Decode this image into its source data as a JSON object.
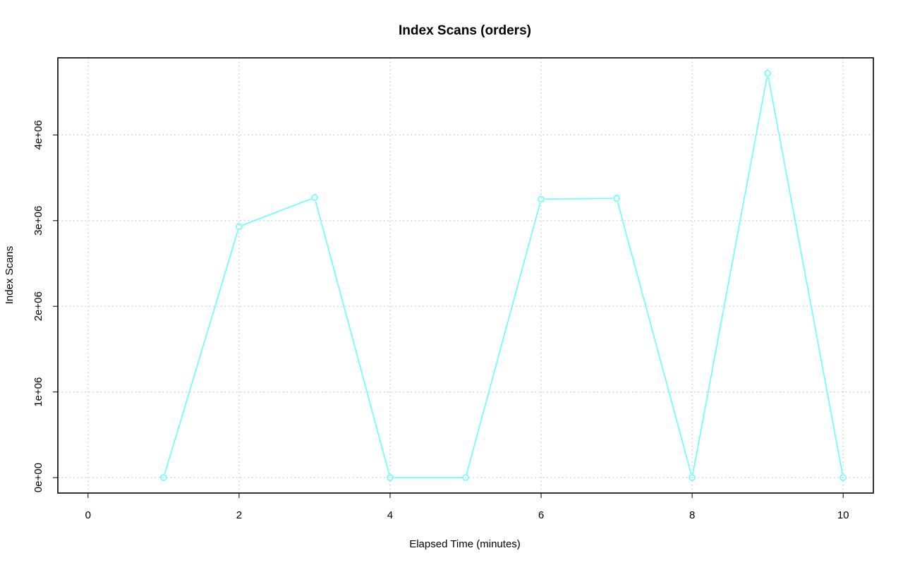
{
  "chart_data": {
    "type": "line",
    "title": "Index Scans (orders)",
    "xlabel": "Elapsed Time (minutes)",
    "ylabel": "Index Scans",
    "xlim": [
      -0.4,
      10.4
    ],
    "ylim": [
      -180000,
      4900000
    ],
    "x_ticks": [
      0,
      2,
      4,
      6,
      8,
      10
    ],
    "x_tick_labels": [
      "0",
      "2",
      "4",
      "6",
      "8",
      "10"
    ],
    "y_ticks": [
      0,
      1000000,
      2000000,
      3000000,
      4000000
    ],
    "y_tick_labels": [
      "0e+00",
      "1e+06",
      "2e+06",
      "3e+06",
      "4e+06"
    ],
    "grid": true,
    "grid_style": "dotted",
    "series": [
      {
        "color": "#66ffff",
        "marker": "open-circle",
        "x": [
          1,
          2,
          3,
          4,
          5,
          6,
          7,
          8,
          9,
          10
        ],
        "y": [
          0,
          2930000,
          3270000,
          0,
          0,
          3250000,
          3260000,
          0,
          4720000,
          0
        ]
      }
    ]
  }
}
